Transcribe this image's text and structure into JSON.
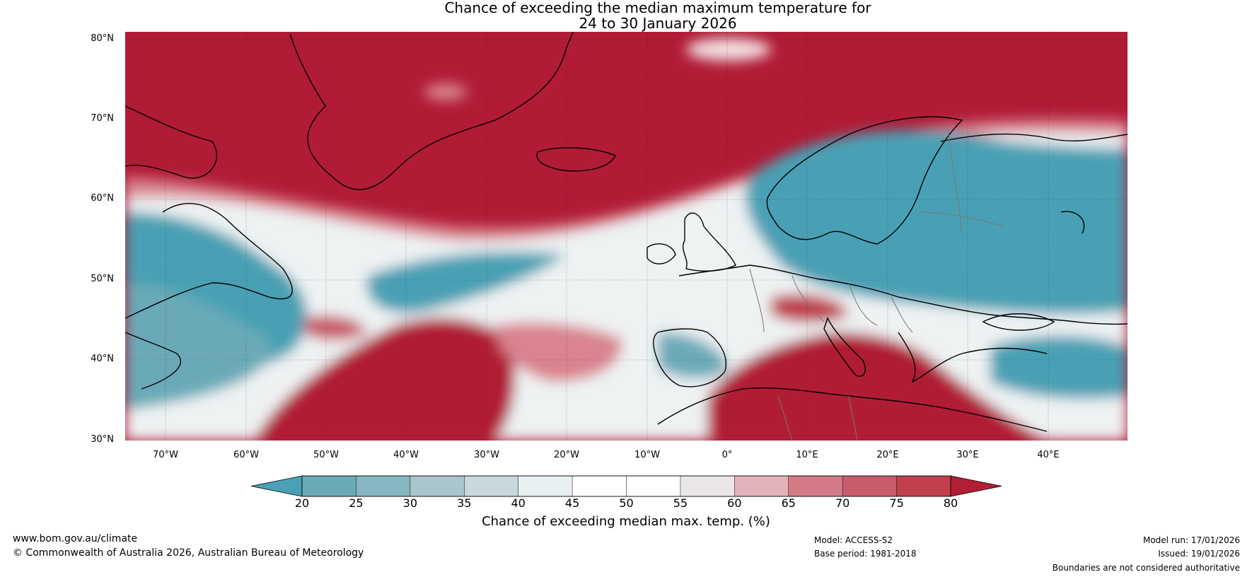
{
  "title_line1": "Chance of exceeding the median maximum temperature for",
  "title_line2": "24 to 30 January 2026",
  "lat_labels": [
    "80°N",
    "70°N",
    "60°N",
    "50°N",
    "40°N",
    "30°N"
  ],
  "lon_labels": [
    "70°W",
    "60°W",
    "50°W",
    "40°W",
    "30°W",
    "20°W",
    "10°W",
    "0°",
    "10°E",
    "20°E",
    "30°E",
    "40°E"
  ],
  "colorbar": {
    "ticks": [
      "20",
      "25",
      "30",
      "35",
      "40",
      "45",
      "50",
      "55",
      "60",
      "65",
      "70",
      "75",
      "80"
    ],
    "colors": [
      "#4aa0b4",
      "#6aaab8",
      "#86b6c2",
      "#a8c6cc",
      "#c8d8dc",
      "#e8f0f2",
      "#ffffff",
      "#ffffff",
      "#ebe7e8",
      "#e2b3ba",
      "#d47a86",
      "#c85c6a",
      "#c0404e",
      "#b11e36"
    ],
    "label": "Chance of exceeding median max. temp. (%)"
  },
  "footer": {
    "url": "www.bom.gov.au/climate",
    "copyright": "© Commonwealth of Australia 2026, Australian Bureau of Meteorology",
    "model": "Model: ACCESS-S2",
    "base_period": "Base period: 1981-2018",
    "model_run": "Model run: 17/01/2026",
    "issued": "Issued: 19/01/2026",
    "disclaimer": "Boundaries are not considered authoritative"
  },
  "palette": {
    "red": "#b11b36",
    "blue": "#4aa0b4",
    "white": "#ffffff"
  }
}
